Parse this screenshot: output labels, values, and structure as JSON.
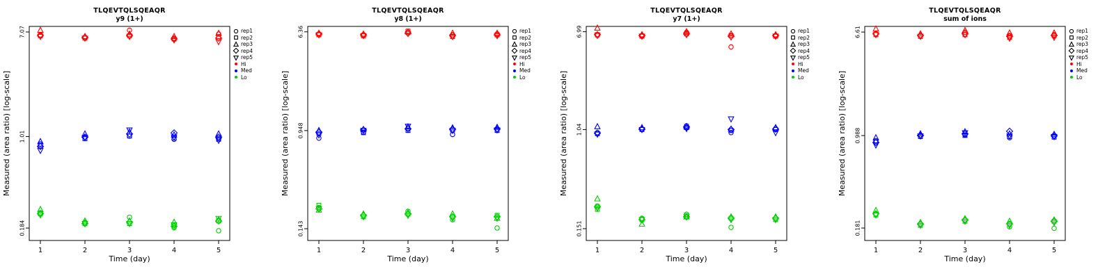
{
  "figure": {
    "xlabel": "Time (day)",
    "ylabel": "Measured (area ratio) [log-scale]"
  },
  "legend": {
    "reps": [
      {
        "label": "rep1",
        "shape": "circle"
      },
      {
        "label": "rep2",
        "shape": "square"
      },
      {
        "label": "rep3",
        "shape": "triangle"
      },
      {
        "label": "rep4",
        "shape": "diamond"
      },
      {
        "label": "rep5",
        "shape": "triangle-down"
      }
    ],
    "groups": [
      {
        "label": "Hi",
        "color": "#FF0000"
      },
      {
        "label": "Med",
        "color": "#0000FF"
      },
      {
        "label": "Lo",
        "color": "#00CD00"
      }
    ]
  },
  "colors": {
    "hi": "#FF0000",
    "med": "#0000FF",
    "lo": "#00CD00",
    "axis": "#000000"
  },
  "chart_data": [
    {
      "type": "scatter",
      "title": "TLQEVTQLSQEAQR",
      "subtitle": "y9 (1+)",
      "xlabel": "Time (day)",
      "ylabel": "Measured (area ratio) [log-scale]",
      "yscale": "log",
      "x": [
        1,
        2,
        3,
        4,
        5
      ],
      "x_ticklabels": [
        "1",
        "2",
        "3",
        "4",
        "5"
      ],
      "y_ticks": [
        {
          "value": 7.07,
          "label": "7.07"
        },
        {
          "value": 1.01,
          "label": "1.01"
        },
        {
          "value": 0.184,
          "label": "0.184"
        }
      ],
      "ylim": [
        0.146,
        7.84
      ],
      "groups": [
        {
          "name": "Hi",
          "color": "#FF0000",
          "series": [
            {
              "rep": "rep1",
              "shape": "circle",
              "values": [
                6.7,
                6.4,
                7.3,
                6.3,
                6.8
              ]
            },
            {
              "rep": "rep2",
              "shape": "square",
              "values": [
                6.6,
                6.3,
                6.6,
                6.2,
                6.5
              ]
            },
            {
              "rep": "rep3",
              "shape": "triangle",
              "values": [
                7.3,
                6.5,
                6.8,
                6.5,
                6.9
              ]
            },
            {
              "rep": "rep4",
              "shape": "diamond",
              "values": [
                6.6,
                6.4,
                6.6,
                6.2,
                6.3
              ]
            },
            {
              "rep": "rep5",
              "shape": "triangle-down",
              "values": [
                6.5,
                6.3,
                6.5,
                6.1,
                5.9
              ]
            }
          ]
        },
        {
          "name": "Med",
          "color": "#0000FF",
          "series": [
            {
              "rep": "rep1",
              "shape": "circle",
              "values": [
                0.88,
                1.0,
                1.02,
                0.96,
                0.98
              ]
            },
            {
              "rep": "rep2",
              "shape": "square",
              "values": [
                0.86,
                0.97,
                1.02,
                0.98,
                0.96
              ]
            },
            {
              "rep": "rep3",
              "shape": "triangle",
              "values": [
                0.92,
                1.06,
                1.1,
                1.04,
                1.06
              ]
            },
            {
              "rep": "rep4",
              "shape": "diamond",
              "values": [
                0.84,
                1.0,
                1.06,
                1.08,
                1.0
              ]
            },
            {
              "rep": "rep5",
              "shape": "triangle-down",
              "values": [
                0.78,
                0.99,
                1.14,
                1.0,
                0.94
              ]
            }
          ]
        },
        {
          "name": "Lo",
          "color": "#00CD00",
          "series": [
            {
              "rep": "rep1",
              "shape": "circle",
              "values": [
                0.245,
                0.205,
                0.225,
                0.185,
                0.175
              ]
            },
            {
              "rep": "rep2",
              "shape": "square",
              "values": [
                0.24,
                0.2,
                0.2,
                0.195,
                0.21
              ]
            },
            {
              "rep": "rep3",
              "shape": "triangle",
              "values": [
                0.26,
                0.21,
                0.21,
                0.205,
                0.215
              ]
            },
            {
              "rep": "rep4",
              "shape": "diamond",
              "values": [
                0.24,
                0.2,
                0.205,
                0.19,
                0.21
              ]
            },
            {
              "rep": "rep5",
              "shape": "triangle-down",
              "values": [
                0.235,
                0.2,
                0.2,
                0.195,
                0.22
              ]
            }
          ]
        }
      ]
    },
    {
      "type": "scatter",
      "title": "TLQEVTQLSQEAQR",
      "subtitle": "y8 (1+)",
      "xlabel": "Time (day)",
      "ylabel": "Measured (area ratio) [log-scale]",
      "yscale": "log",
      "x": [
        1,
        2,
        3,
        4,
        5
      ],
      "x_ticklabels": [
        "1",
        "2",
        "3",
        "4",
        "5"
      ],
      "y_ticks": [
        {
          "value": 6.36,
          "label": "6.36"
        },
        {
          "value": 0.948,
          "label": "0.948"
        },
        {
          "value": 0.143,
          "label": "0.143"
        }
      ],
      "ylim": [
        0.114,
        7.06
      ],
      "groups": [
        {
          "name": "Hi",
          "color": "#FF0000",
          "series": [
            {
              "rep": "rep1",
              "shape": "circle",
              "values": [
                6.1,
                6.0,
                6.3,
                6.0,
                6.1
              ]
            },
            {
              "rep": "rep2",
              "shape": "square",
              "values": [
                6.0,
                5.9,
                6.45,
                5.8,
                6.0
              ]
            },
            {
              "rep": "rep3",
              "shape": "triangle",
              "values": [
                6.2,
                6.1,
                6.35,
                6.2,
                6.2
              ]
            },
            {
              "rep": "rep4",
              "shape": "diamond",
              "values": [
                6.1,
                6.0,
                6.2,
                5.9,
                6.0
              ]
            },
            {
              "rep": "rep5",
              "shape": "triangle-down",
              "values": [
                6.0,
                5.9,
                6.15,
                5.8,
                5.9
              ]
            }
          ]
        },
        {
          "name": "Med",
          "color": "#0000FF",
          "series": [
            {
              "rep": "rep1",
              "shape": "circle",
              "values": [
                0.82,
                0.92,
                0.99,
                0.88,
                0.97
              ]
            },
            {
              "rep": "rep2",
              "shape": "square",
              "values": [
                0.9,
                0.91,
                0.95,
                0.96,
                0.95
              ]
            },
            {
              "rep": "rep3",
              "shape": "triangle",
              "values": [
                0.95,
                0.97,
                1.02,
                1.0,
                1.01
              ]
            },
            {
              "rep": "rep4",
              "shape": "diamond",
              "values": [
                0.92,
                0.96,
                0.98,
                0.97,
                0.98
              ]
            },
            {
              "rep": "rep5",
              "shape": "triangle-down",
              "values": [
                0.87,
                0.95,
                1.03,
                0.95,
                0.96
              ]
            }
          ]
        },
        {
          "name": "Lo",
          "color": "#00CD00",
          "series": [
            {
              "rep": "rep1",
              "shape": "circle",
              "values": [
                0.215,
                0.185,
                0.2,
                0.17,
                0.145
              ]
            },
            {
              "rep": "rep2",
              "shape": "square",
              "values": [
                0.225,
                0.18,
                0.19,
                0.18,
                0.185
              ]
            },
            {
              "rep": "rep3",
              "shape": "triangle",
              "values": [
                0.205,
                0.19,
                0.195,
                0.19,
                0.175
              ]
            },
            {
              "rep": "rep4",
              "shape": "diamond",
              "values": [
                0.21,
                0.185,
                0.19,
                0.18,
                0.18
              ]
            },
            {
              "rep": "rep5",
              "shape": "triangle-down",
              "values": [
                0.21,
                0.18,
                0.185,
                0.175,
                0.175
              ]
            }
          ]
        }
      ]
    },
    {
      "type": "scatter",
      "title": "TLQEVTQLSQEAQR",
      "subtitle": "y7 (1+)",
      "xlabel": "Time (day)",
      "ylabel": "Measured (area ratio) [log-scale]",
      "yscale": "log",
      "x": [
        1,
        2,
        3,
        4,
        5
      ],
      "x_ticklabels": [
        "1",
        "2",
        "3",
        "4",
        "5"
      ],
      "y_ticks": [
        {
          "value": 6.99,
          "label": "6.99"
        },
        {
          "value": 1.04,
          "label": "1.04"
        },
        {
          "value": 0.151,
          "label": "0.151"
        }
      ],
      "ylim": [
        0.12,
        7.75
      ],
      "groups": [
        {
          "name": "Hi",
          "color": "#FF0000",
          "series": [
            {
              "rep": "rep1",
              "shape": "circle",
              "values": [
                6.5,
                6.5,
                6.9,
                5.2,
                6.5
              ]
            },
            {
              "rep": "rep2",
              "shape": "square",
              "values": [
                6.6,
                6.4,
                6.7,
                6.5,
                6.4
              ]
            },
            {
              "rep": "rep3",
              "shape": "triangle",
              "values": [
                7.5,
                6.6,
                7.0,
                6.7,
                6.6
              ]
            },
            {
              "rep": "rep4",
              "shape": "diamond",
              "values": [
                6.6,
                6.5,
                6.7,
                6.4,
                6.5
              ]
            },
            {
              "rep": "rep5",
              "shape": "triangle-down",
              "values": [
                6.5,
                6.4,
                6.6,
                6.3,
                6.4
              ]
            }
          ]
        },
        {
          "name": "Med",
          "color": "#0000FF",
          "series": [
            {
              "rep": "rep1",
              "shape": "circle",
              "values": [
                0.98,
                1.05,
                1.12,
                0.98,
                1.06
              ]
            },
            {
              "rep": "rep2",
              "shape": "square",
              "values": [
                0.96,
                1.04,
                1.08,
                1.02,
                1.04
              ]
            },
            {
              "rep": "rep3",
              "shape": "triangle",
              "values": [
                1.1,
                1.08,
                1.1,
                1.05,
                1.08
              ]
            },
            {
              "rep": "rep4",
              "shape": "diamond",
              "values": [
                0.97,
                1.05,
                1.09,
                1.04,
                1.05
              ]
            },
            {
              "rep": "rep5",
              "shape": "triangle-down",
              "values": [
                0.95,
                1.04,
                1.06,
                1.28,
                0.98
              ]
            }
          ]
        },
        {
          "name": "Lo",
          "color": "#00CD00",
          "series": [
            {
              "rep": "rep1",
              "shape": "circle",
              "values": [
                0.235,
                0.185,
                0.2,
                0.155,
                0.185
              ]
            },
            {
              "rep": "rep2",
              "shape": "square",
              "values": [
                0.22,
                0.18,
                0.195,
                0.185,
                0.18
              ]
            },
            {
              "rep": "rep3",
              "shape": "triangle",
              "values": [
                0.27,
                0.165,
                0.19,
                0.19,
                0.19
              ]
            },
            {
              "rep": "rep4",
              "shape": "diamond",
              "values": [
                0.23,
                0.18,
                0.19,
                0.185,
                0.185
              ]
            },
            {
              "rep": "rep5",
              "shape": "triangle-down",
              "values": [
                0.225,
                0.18,
                0.19,
                0.18,
                0.18
              ]
            }
          ]
        }
      ]
    },
    {
      "type": "scatter",
      "title": "TLQEVTQLSQEAQR",
      "subtitle": "sum of ions",
      "xlabel": "Time (day)",
      "ylabel": "Measured (area ratio) [log-scale]",
      "yscale": "log",
      "x": [
        1,
        2,
        3,
        4,
        5
      ],
      "x_ticklabels": [
        "1",
        "2",
        "3",
        "4",
        "5"
      ],
      "y_ticks": [
        {
          "value": 6.61,
          "label": "6.61"
        },
        {
          "value": 0.988,
          "label": "0.988"
        },
        {
          "value": 0.181,
          "label": "0.181"
        }
      ],
      "ylim": [
        0.144,
        7.33
      ],
      "groups": [
        {
          "name": "Hi",
          "color": "#FF0000",
          "series": [
            {
              "rep": "rep1",
              "shape": "circle",
              "values": [
                6.4,
                6.2,
                6.6,
                6.2,
                6.3
              ]
            },
            {
              "rep": "rep2",
              "shape": "square",
              "values": [
                6.3,
                6.1,
                6.3,
                6.0,
                6.2
              ]
            },
            {
              "rep": "rep3",
              "shape": "triangle",
              "values": [
                7.0,
                6.4,
                6.8,
                6.5,
                6.5
              ]
            },
            {
              "rep": "rep4",
              "shape": "diamond",
              "values": [
                6.4,
                6.2,
                6.4,
                6.1,
                6.2
              ]
            },
            {
              "rep": "rep5",
              "shape": "triangle-down",
              "values": [
                6.3,
                6.1,
                6.3,
                5.9,
                6.0
              ]
            }
          ]
        },
        {
          "name": "Med",
          "color": "#0000FF",
          "series": [
            {
              "rep": "rep1",
              "shape": "circle",
              "values": [
                0.9,
                0.99,
                1.0,
                0.95,
                0.98
              ]
            },
            {
              "rep": "rep2",
              "shape": "square",
              "values": [
                0.88,
                0.97,
                0.99,
                0.97,
                0.96
              ]
            },
            {
              "rep": "rep3",
              "shape": "triangle",
              "values": [
                0.95,
                1.02,
                1.06,
                1.02,
                1.01
              ]
            },
            {
              "rep": "rep4",
              "shape": "diamond",
              "values": [
                0.87,
                0.99,
                1.02,
                1.07,
                0.99
              ]
            },
            {
              "rep": "rep5",
              "shape": "triangle-down",
              "values": [
                0.83,
                0.98,
                1.04,
                0.98,
                0.97
              ]
            }
          ]
        },
        {
          "name": "Lo",
          "color": "#00CD00",
          "series": [
            {
              "rep": "rep1",
              "shape": "circle",
              "values": [
                0.235,
                0.195,
                0.21,
                0.185,
                0.18
              ]
            },
            {
              "rep": "rep2",
              "shape": "square",
              "values": [
                0.23,
                0.19,
                0.205,
                0.195,
                0.205
              ]
            },
            {
              "rep": "rep3",
              "shape": "triangle",
              "values": [
                0.25,
                0.2,
                0.215,
                0.205,
                0.21
              ]
            },
            {
              "rep": "rep4",
              "shape": "diamond",
              "values": [
                0.235,
                0.195,
                0.21,
                0.195,
                0.205
              ]
            },
            {
              "rep": "rep5",
              "shape": "triangle-down",
              "values": [
                0.23,
                0.19,
                0.205,
                0.19,
                0.2
              ]
            }
          ]
        }
      ]
    }
  ]
}
